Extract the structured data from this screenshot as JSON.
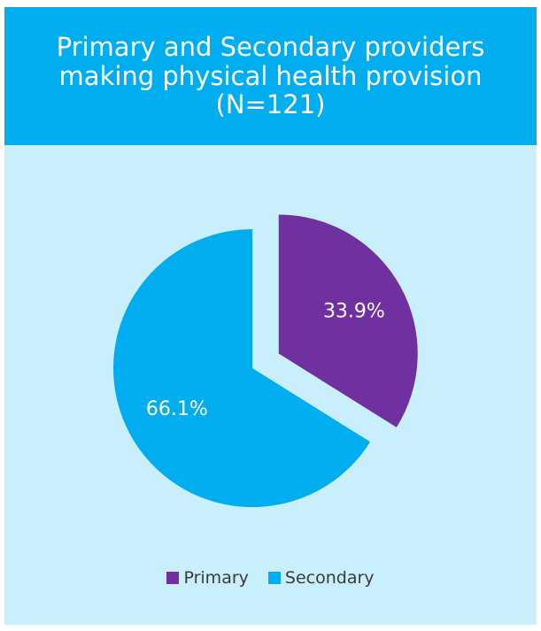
{
  "chart_data": {
    "type": "pie",
    "title": "Primary and Secondary providers making physical health provision (N=121)",
    "slices": [
      {
        "name": "Primary",
        "value": 33.9,
        "label": "33.9%",
        "color": "#7030a0",
        "exploded": true
      },
      {
        "name": "Secondary",
        "value": 66.1,
        "label": "66.1%",
        "color": "#00aeef",
        "exploded": false
      }
    ],
    "legend_position": "bottom",
    "colors": {
      "header_background": "#00aeef",
      "chart_background": "#c9effd",
      "title_text": "#ffffff",
      "data_label_text": "#ffffff"
    }
  }
}
